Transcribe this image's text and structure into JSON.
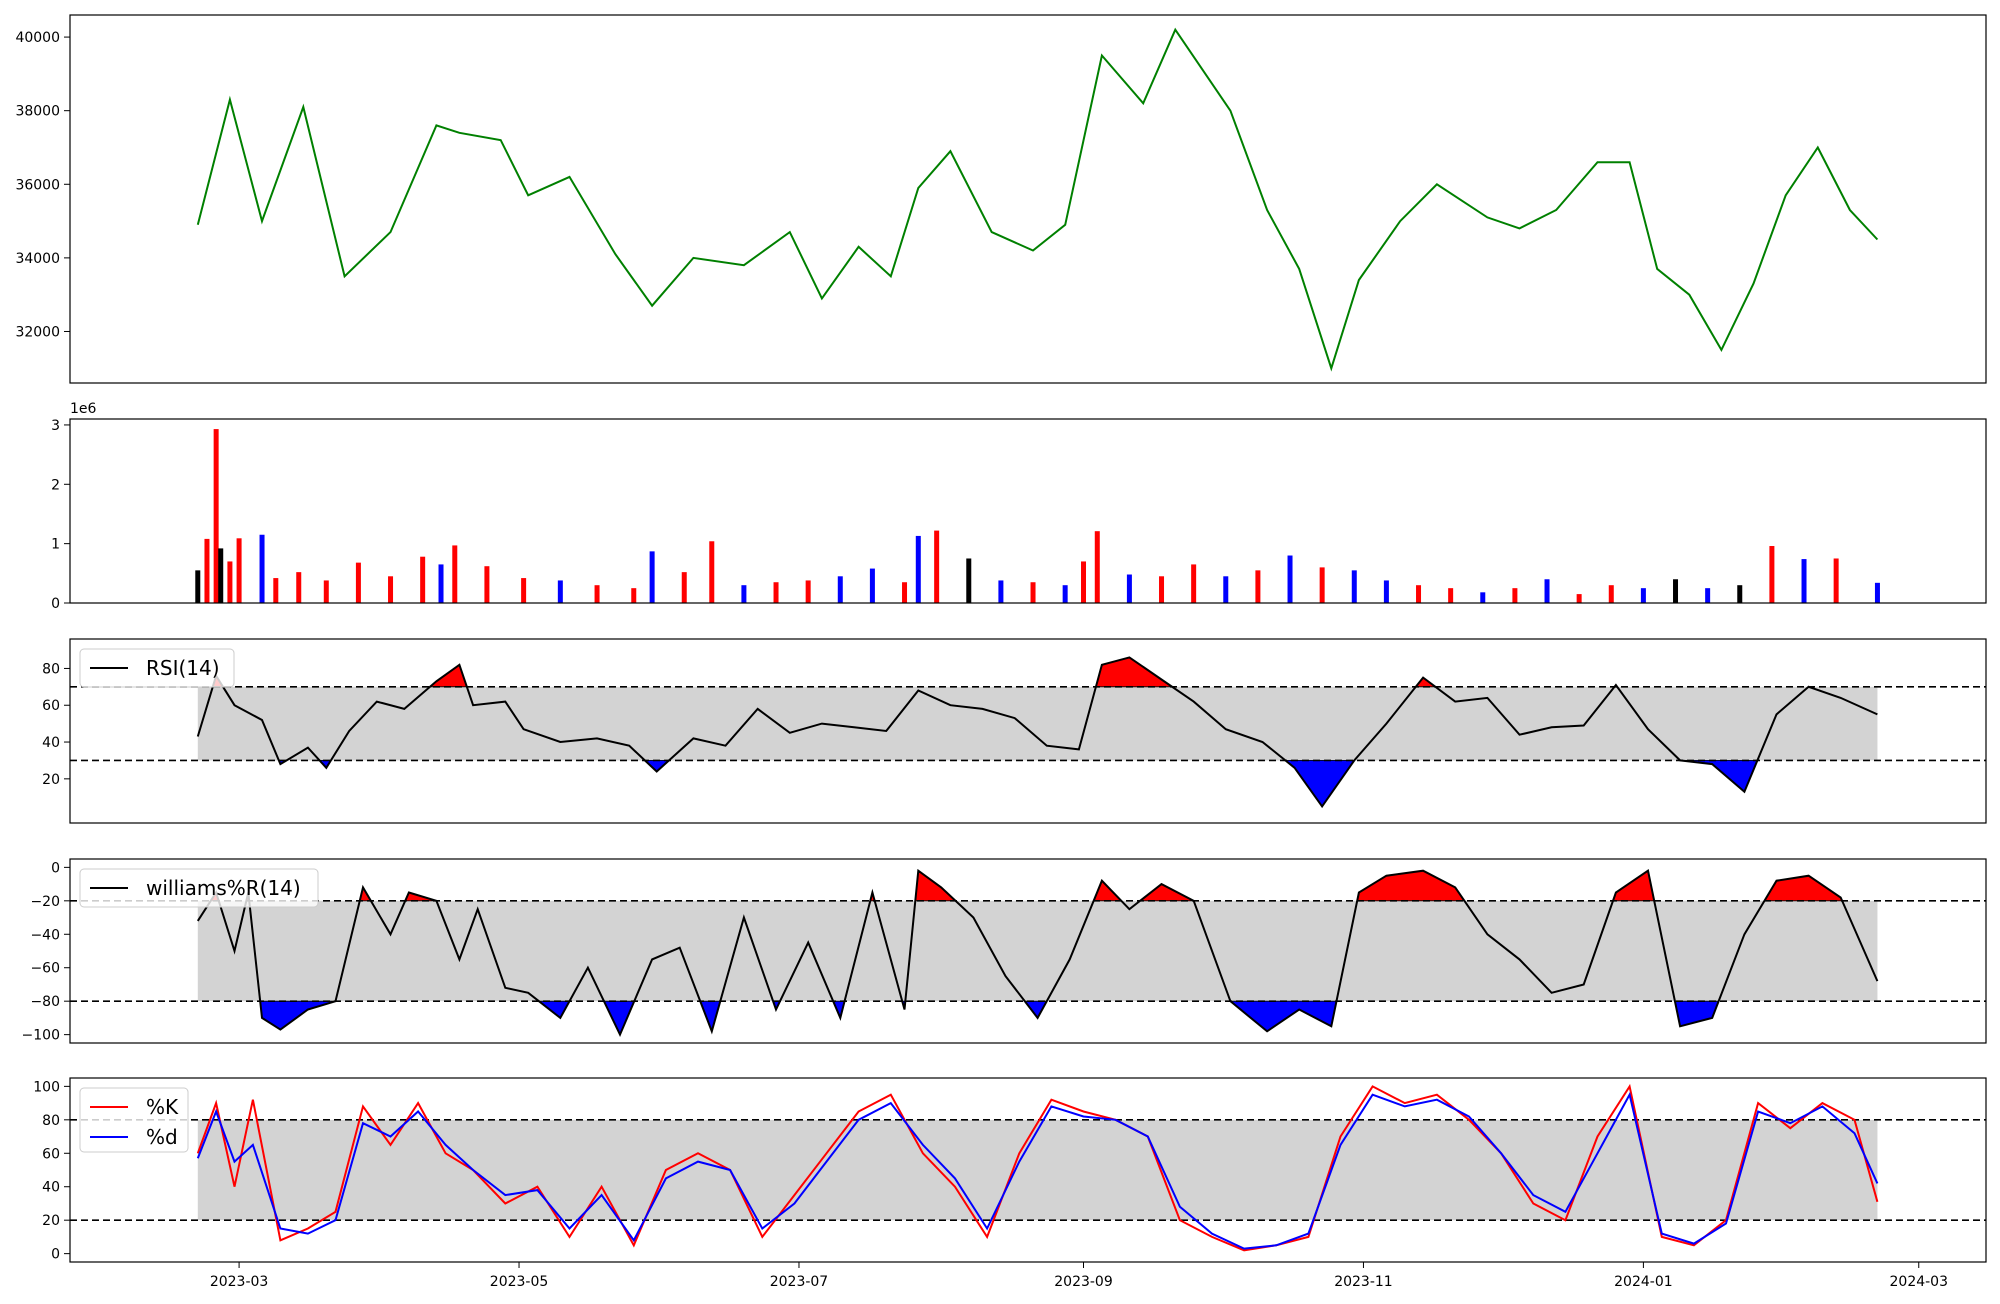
{
  "chart_data": [
    {
      "type": "line",
      "id": "price",
      "color": "#008000",
      "ylim": [
        30600,
        40600
      ],
      "yticks": [
        32000,
        34000,
        36000,
        38000,
        40000
      ],
      "ytick_labels": [
        "32000",
        "34000",
        "36000",
        "38000",
        "40000"
      ],
      "x": [
        "2023-02-20",
        "2023-02-27",
        "2023-03-06",
        "2023-03-15",
        "2023-03-24",
        "2023-04-03",
        "2023-04-13",
        "2023-04-18",
        "2023-04-27",
        "2023-05-03",
        "2023-05-12",
        "2023-05-22",
        "2023-05-30",
        "2023-06-08",
        "2023-06-19",
        "2023-06-29",
        "2023-07-06",
        "2023-07-14",
        "2023-07-21",
        "2023-07-27",
        "2023-08-03",
        "2023-08-12",
        "2023-08-21",
        "2023-08-28",
        "2023-09-05",
        "2023-09-14",
        "2023-09-21",
        "2023-10-03",
        "2023-10-11",
        "2023-10-18",
        "2023-10-25",
        "2023-10-31",
        "2023-11-09",
        "2023-11-17",
        "2023-11-28",
        "2023-12-05",
        "2023-12-13",
        "2023-12-22",
        "2023-12-29",
        "2024-01-04",
        "2024-01-11",
        "2024-01-18",
        "2024-01-25",
        "2024-02-01",
        "2024-02-08",
        "2024-02-15",
        "2024-02-21"
      ],
      "y": [
        34900,
        38300,
        35000,
        38100,
        33500,
        34700,
        37600,
        37400,
        37200,
        35700,
        36200,
        34100,
        32700,
        34000,
        33800,
        34700,
        32900,
        34300,
        33500,
        35900,
        36900,
        34700,
        34200,
        34900,
        39500,
        38200,
        40200,
        38000,
        35300,
        33700,
        31000,
        33400,
        35000,
        36000,
        35100,
        34800,
        35300,
        36600,
        36600,
        33700,
        33000,
        31500,
        33300,
        35700,
        37000,
        35300,
        34500
      ]
    },
    {
      "type": "bar",
      "id": "volume",
      "offset_label": "1e6",
      "ylim": [
        0,
        3100000
      ],
      "yticks": [
        0,
        1000000,
        2000000,
        3000000
      ],
      "ytick_labels": [
        "0",
        "1",
        "2",
        "3"
      ],
      "x": [
        "2023-02-20",
        "2023-02-22",
        "2023-02-24",
        "2023-02-25",
        "2023-02-27",
        "2023-03-01",
        "2023-03-06",
        "2023-03-09",
        "2023-03-14",
        "2023-03-20",
        "2023-03-27",
        "2023-04-03",
        "2023-04-10",
        "2023-04-14",
        "2023-04-17",
        "2023-04-24",
        "2023-05-02",
        "2023-05-10",
        "2023-05-18",
        "2023-05-26",
        "2023-05-30",
        "2023-06-06",
        "2023-06-12",
        "2023-06-19",
        "2023-06-26",
        "2023-07-03",
        "2023-07-10",
        "2023-07-17",
        "2023-07-24",
        "2023-07-27",
        "2023-07-31",
        "2023-08-07",
        "2023-08-14",
        "2023-08-21",
        "2023-08-28",
        "2023-09-01",
        "2023-09-04",
        "2023-09-11",
        "2023-09-18",
        "2023-09-25",
        "2023-10-02",
        "2023-10-09",
        "2023-10-16",
        "2023-10-23",
        "2023-10-30",
        "2023-11-06",
        "2023-11-13",
        "2023-11-20",
        "2023-11-27",
        "2023-12-04",
        "2023-12-11",
        "2023-12-18",
        "2023-12-25",
        "2024-01-01",
        "2024-01-08",
        "2024-01-15",
        "2024-01-22",
        "2024-01-29",
        "2024-02-05",
        "2024-02-12",
        "2024-02-21"
      ],
      "values": [
        550000,
        1080000,
        2930000,
        920000,
        700000,
        1090000,
        1150000,
        420000,
        520000,
        380000,
        680000,
        450000,
        780000,
        650000,
        970000,
        620000,
        420000,
        380000,
        300000,
        250000,
        870000,
        520000,
        1040000,
        300000,
        350000,
        380000,
        450000,
        580000,
        350000,
        1130000,
        1220000,
        750000,
        380000,
        350000,
        300000,
        700000,
        1210000,
        480000,
        450000,
        650000,
        450000,
        550000,
        800000,
        600000,
        550000,
        380000,
        300000,
        250000,
        180000,
        250000,
        400000,
        150000,
        300000,
        250000,
        400000,
        250000,
        300000,
        960000,
        740000,
        750000,
        340000
      ],
      "colors": [
        "black",
        "red",
        "red",
        "black",
        "red",
        "red",
        "blue",
        "red",
        "red",
        "red",
        "red",
        "red",
        "red",
        "blue",
        "red",
        "red",
        "red",
        "blue",
        "red",
        "red",
        "blue",
        "red",
        "red",
        "blue",
        "red",
        "red",
        "blue",
        "blue",
        "red",
        "blue",
        "red",
        "black",
        "blue",
        "red",
        "blue",
        "red",
        "red",
        "blue",
        "red",
        "red",
        "blue",
        "red",
        "blue",
        "red",
        "blue",
        "blue",
        "red",
        "red",
        "blue",
        "red",
        "blue",
        "red",
        "red",
        "blue",
        "black",
        "blue",
        "black",
        "red",
        "blue",
        "red",
        "blue"
      ]
    },
    {
      "type": "line",
      "id": "rsi",
      "legend": [
        "RSI(14)"
      ],
      "ylim": [
        -4,
        96
      ],
      "yticks": [
        20,
        40,
        60,
        80
      ],
      "ytick_labels": [
        "20",
        "40",
        "60",
        "80"
      ],
      "band": [
        30,
        70
      ],
      "x": [
        "2023-02-20",
        "2023-02-24",
        "2023-02-28",
        "2023-03-06",
        "2023-03-10",
        "2023-03-16",
        "2023-03-20",
        "2023-03-25",
        "2023-03-31",
        "2023-04-06",
        "2023-04-13",
        "2023-04-18",
        "2023-04-21",
        "2023-04-28",
        "2023-05-02",
        "2023-05-10",
        "2023-05-18",
        "2023-05-25",
        "2023-05-31",
        "2023-06-08",
        "2023-06-15",
        "2023-06-22",
        "2023-06-29",
        "2023-07-06",
        "2023-07-13",
        "2023-07-20",
        "2023-07-27",
        "2023-08-03",
        "2023-08-10",
        "2023-08-17",
        "2023-08-24",
        "2023-08-31",
        "2023-09-05",
        "2023-09-11",
        "2023-09-18",
        "2023-09-25",
        "2023-10-02",
        "2023-10-10",
        "2023-10-17",
        "2023-10-23",
        "2023-10-30",
        "2023-11-06",
        "2023-11-14",
        "2023-11-21",
        "2023-11-28",
        "2023-12-05",
        "2023-12-12",
        "2023-12-19",
        "2023-12-26",
        "2024-01-02",
        "2024-01-09",
        "2024-01-16",
        "2024-01-23",
        "2024-01-30",
        "2024-02-06",
        "2024-02-13",
        "2024-02-21"
      ],
      "y": [
        43,
        76,
        60,
        52,
        28,
        37,
        26,
        46,
        62,
        58,
        73,
        82,
        60,
        62,
        47,
        40,
        42,
        38,
        24,
        42,
        38,
        58,
        45,
        50,
        48,
        46,
        68,
        60,
        58,
        53,
        38,
        36,
        82,
        86,
        74,
        62,
        47,
        40,
        26,
        5,
        30,
        50,
        75,
        62,
        64,
        44,
        48,
        49,
        71,
        47,
        30,
        28,
        13,
        55,
        70,
        64,
        55
      ]
    },
    {
      "type": "line",
      "id": "williams",
      "legend": [
        "williams%R(14)"
      ],
      "ylim": [
        -105,
        5
      ],
      "yticks": [
        -100,
        -80,
        -60,
        -40,
        -20,
        0
      ],
      "ytick_labels": [
        "−100",
        "−80",
        "−60",
        "−40",
        "−20",
        "0"
      ],
      "band": [
        -80,
        -20
      ],
      "x": [
        "2023-02-20",
        "2023-02-24",
        "2023-02-28",
        "2023-03-03",
        "2023-03-06",
        "2023-03-10",
        "2023-03-16",
        "2023-03-22",
        "2023-03-28",
        "2023-04-03",
        "2023-04-07",
        "2023-04-13",
        "2023-04-18",
        "2023-04-22",
        "2023-04-28",
        "2023-05-03",
        "2023-05-10",
        "2023-05-16",
        "2023-05-23",
        "2023-05-30",
        "2023-06-05",
        "2023-06-12",
        "2023-06-19",
        "2023-06-26",
        "2023-07-03",
        "2023-07-10",
        "2023-07-17",
        "2023-07-24",
        "2023-07-27",
        "2023-08-01",
        "2023-08-08",
        "2023-08-15",
        "2023-08-22",
        "2023-08-29",
        "2023-09-05",
        "2023-09-11",
        "2023-09-18",
        "2023-09-25",
        "2023-10-03",
        "2023-10-11",
        "2023-10-18",
        "2023-10-25",
        "2023-10-31",
        "2023-11-06",
        "2023-11-14",
        "2023-11-21",
        "2023-11-28",
        "2023-12-05",
        "2023-12-12",
        "2023-12-19",
        "2023-12-26",
        "2024-01-02",
        "2024-01-09",
        "2024-01-16",
        "2024-01-23",
        "2024-01-30",
        "2024-02-06",
        "2024-02-13",
        "2024-02-21"
      ],
      "y": [
        -32,
        -15,
        -50,
        -15,
        -90,
        -97,
        -85,
        -80,
        -12,
        -40,
        -15,
        -20,
        -55,
        -25,
        -72,
        -75,
        -90,
        -60,
        -100,
        -55,
        -48,
        -98,
        -30,
        -85,
        -45,
        -90,
        -15,
        -85,
        -2,
        -12,
        -30,
        -65,
        -90,
        -55,
        -8,
        -25,
        -10,
        -20,
        -80,
        -98,
        -85,
        -95,
        -15,
        -5,
        -2,
        -12,
        -40,
        -55,
        -75,
        -70,
        -15,
        -2,
        -95,
        -90,
        -40,
        -8,
        -5,
        -18,
        -68
      ]
    },
    {
      "type": "line",
      "id": "stochastic",
      "legend": [
        "%K",
        "%d"
      ],
      "ylim": [
        -5,
        105
      ],
      "yticks": [
        0,
        20,
        40,
        60,
        80,
        100
      ],
      "ytick_labels": [
        "0",
        "20",
        "40",
        "60",
        "80",
        "100"
      ],
      "band": [
        20,
        80
      ],
      "xticks": [
        "2023-03-01",
        "2023-05-01",
        "2023-07-01",
        "2023-09-01",
        "2023-11-01",
        "2024-01-01",
        "2024-03-01"
      ],
      "xtick_labels": [
        "2023-03",
        "2023-05",
        "2023-07",
        "2023-09",
        "2023-11",
        "2024-01",
        "2024-03"
      ],
      "x": [
        "2023-02-20",
        "2023-02-24",
        "2023-02-28",
        "2023-03-04",
        "2023-03-10",
        "2023-03-16",
        "2023-03-22",
        "2023-03-28",
        "2023-04-03",
        "2023-04-09",
        "2023-04-15",
        "2023-04-21",
        "2023-04-28",
        "2023-05-05",
        "2023-05-12",
        "2023-05-19",
        "2023-05-26",
        "2023-06-02",
        "2023-06-09",
        "2023-06-16",
        "2023-06-23",
        "2023-06-30",
        "2023-07-07",
        "2023-07-14",
        "2023-07-21",
        "2023-07-28",
        "2023-08-04",
        "2023-08-11",
        "2023-08-18",
        "2023-08-25",
        "2023-09-01",
        "2023-09-08",
        "2023-09-15",
        "2023-09-22",
        "2023-09-29",
        "2023-10-06",
        "2023-10-13",
        "2023-10-20",
        "2023-10-27",
        "2023-11-03",
        "2023-11-10",
        "2023-11-17",
        "2023-11-24",
        "2023-12-01",
        "2023-12-08",
        "2023-12-15",
        "2023-12-22",
        "2023-12-29",
        "2024-01-05",
        "2024-01-12",
        "2024-01-19",
        "2024-01-26",
        "2024-02-02",
        "2024-02-09",
        "2024-02-16",
        "2024-02-21"
      ],
      "series": [
        {
          "name": "%K",
          "color": "red",
          "values": [
            60,
            90,
            40,
            92,
            8,
            15,
            25,
            88,
            65,
            90,
            60,
            50,
            30,
            40,
            10,
            40,
            5,
            50,
            60,
            50,
            10,
            35,
            60,
            85,
            95,
            60,
            40,
            10,
            60,
            92,
            85,
            80,
            70,
            20,
            10,
            2,
            5,
            10,
            70,
            100,
            90,
            95,
            80,
            60,
            30,
            20,
            70,
            100,
            10,
            5,
            20,
            90,
            75,
            90,
            80,
            31
          ]
        },
        {
          "name": "%d",
          "color": "blue",
          "values": [
            57,
            85,
            55,
            65,
            15,
            12,
            20,
            78,
            70,
            85,
            65,
            50,
            35,
            38,
            15,
            35,
            8,
            45,
            55,
            50,
            15,
            30,
            55,
            80,
            90,
            65,
            45,
            15,
            55,
            88,
            82,
            80,
            70,
            28,
            12,
            3,
            5,
            12,
            65,
            95,
            88,
            92,
            82,
            60,
            35,
            25,
            60,
            95,
            12,
            6,
            18,
            85,
            78,
            88,
            72,
            42
          ]
        }
      ]
    }
  ]
}
